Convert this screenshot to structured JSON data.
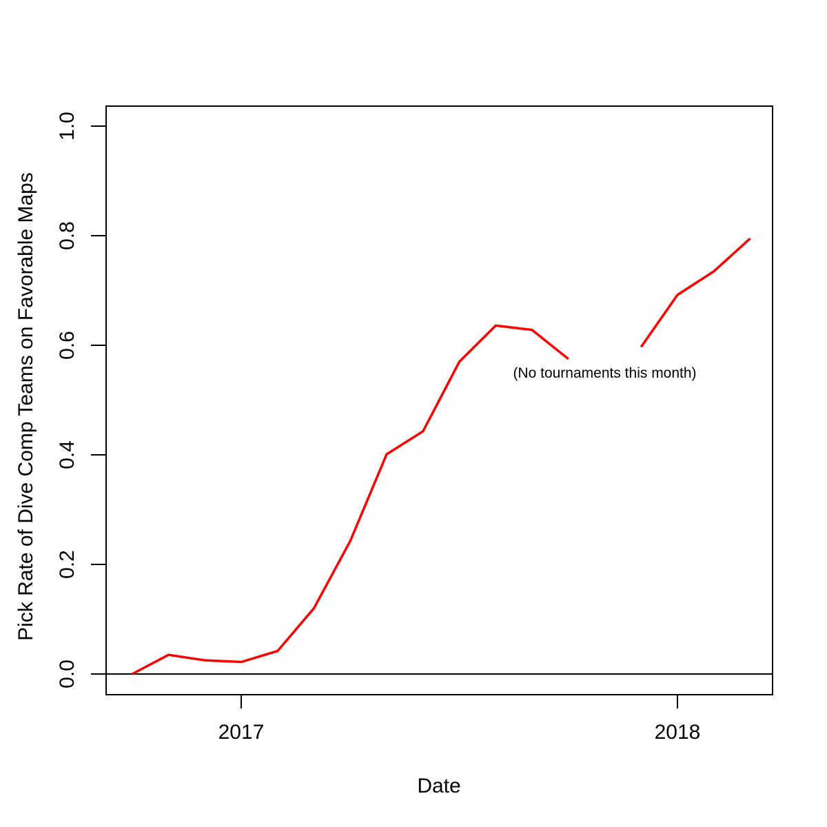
{
  "chart_data": {
    "type": "line",
    "title": "",
    "xlabel": "Date",
    "ylabel": "Pick Rate of Dive Comp Teams on Favorable Maps",
    "categories": [
      "Oct 2016",
      "Nov 2016",
      "Dec 2016",
      "Jan 2017",
      "Feb 2017",
      "Mar 2017",
      "Apr 2017",
      "May 2017",
      "Jun 2017",
      "Jul 2017",
      "Aug 2017",
      "Sep 2017",
      "Oct 2017",
      "Nov 2017",
      "Dec 2017",
      "Jan 2018",
      "Feb 2018",
      "Mar 2018"
    ],
    "series": [
      {
        "name": "Pick Rate of Dive Comp Teams",
        "color": "#ff0000",
        "values": [
          0.0,
          0.035,
          0.025,
          0.022,
          0.042,
          0.12,
          0.243,
          0.401,
          0.443,
          0.57,
          0.636,
          0.628,
          0.575,
          null,
          0.597,
          0.692,
          0.735,
          0.795
        ]
      }
    ],
    "x_ticks": [
      {
        "label": "2017",
        "category_index": 3
      },
      {
        "label": "2018",
        "category_index": 15
      }
    ],
    "y_ticks": [
      {
        "label": "0.0",
        "value": 0.0
      },
      {
        "label": "0.2",
        "value": 0.2
      },
      {
        "label": "0.4",
        "value": 0.4
      },
      {
        "label": "0.6",
        "value": 0.6
      },
      {
        "label": "0.8",
        "value": 0.8
      },
      {
        "label": "1.0",
        "value": 1.0
      }
    ],
    "ylim": [
      0.0,
      1.0
    ],
    "grid": false,
    "legend": "none",
    "zero_line": true,
    "annotation": {
      "text": "(No tournaments this month)",
      "category_index": 13,
      "value": 0.548
    }
  },
  "colors": {
    "line": "#ff0000",
    "axis": "#000000",
    "background": "#ffffff"
  }
}
